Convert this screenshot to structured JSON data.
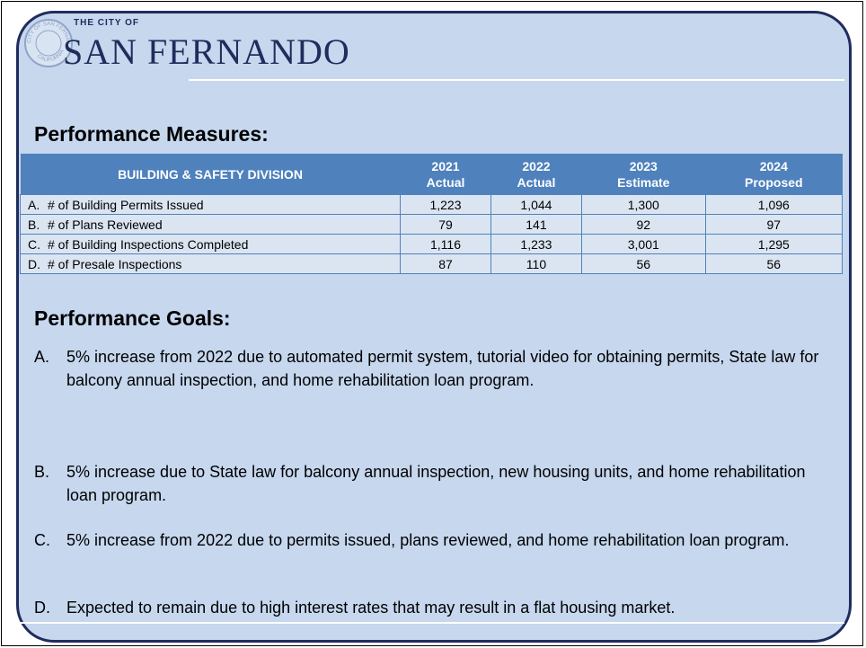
{
  "logo": {
    "seal_top": "CITY OF SAN FERNANDO",
    "seal_bottom": "CALIFORNIA",
    "small": "THE CITY OF",
    "name": "SAN FERNANDO"
  },
  "measures_title": "Performance Measures:",
  "table": {
    "header": {
      "division": "BUILDING & SAFETY DIVISION",
      "columns": [
        {
          "year": "2021",
          "kind": "Actual"
        },
        {
          "year": "2022",
          "kind": "Actual"
        },
        {
          "year": "2023",
          "kind": "Estimate"
        },
        {
          "year": "2024",
          "kind": "Proposed"
        }
      ]
    },
    "rows": [
      {
        "letter": "A.",
        "label": "# of Building Permits Issued",
        "values": [
          "1,223",
          "1,044",
          "1,300",
          "1,096"
        ]
      },
      {
        "letter": "B.",
        "label": "# of Plans Reviewed",
        "values": [
          "79",
          "141",
          "92",
          "97"
        ]
      },
      {
        "letter": "C.",
        "label": "# of Building Inspections Completed",
        "values": [
          "1,116",
          "1,233",
          "3,001",
          "1,295"
        ]
      },
      {
        "letter": "D.",
        "label": "# of Presale Inspections",
        "values": [
          "87",
          "110",
          "56",
          "56"
        ]
      }
    ]
  },
  "goals_title": "Performance Goals:",
  "goals": [
    {
      "letter": "A.",
      "text": "5% increase from 2022 due to automated permit system, tutorial video for obtaining permits, State law for balcony annual inspection, and home rehabilitation loan program."
    },
    {
      "letter": "B.",
      "text": "5% increase due to State law for balcony annual inspection, new housing units, and home rehabilitation loan program."
    },
    {
      "letter": "C.",
      "text": "5% increase from 2022 due to permits issued, plans reviewed, and home rehabilitation loan program."
    },
    {
      "letter": "D.",
      "text": "Expected to remain due to high interest rates that may result in a flat housing market."
    }
  ]
}
